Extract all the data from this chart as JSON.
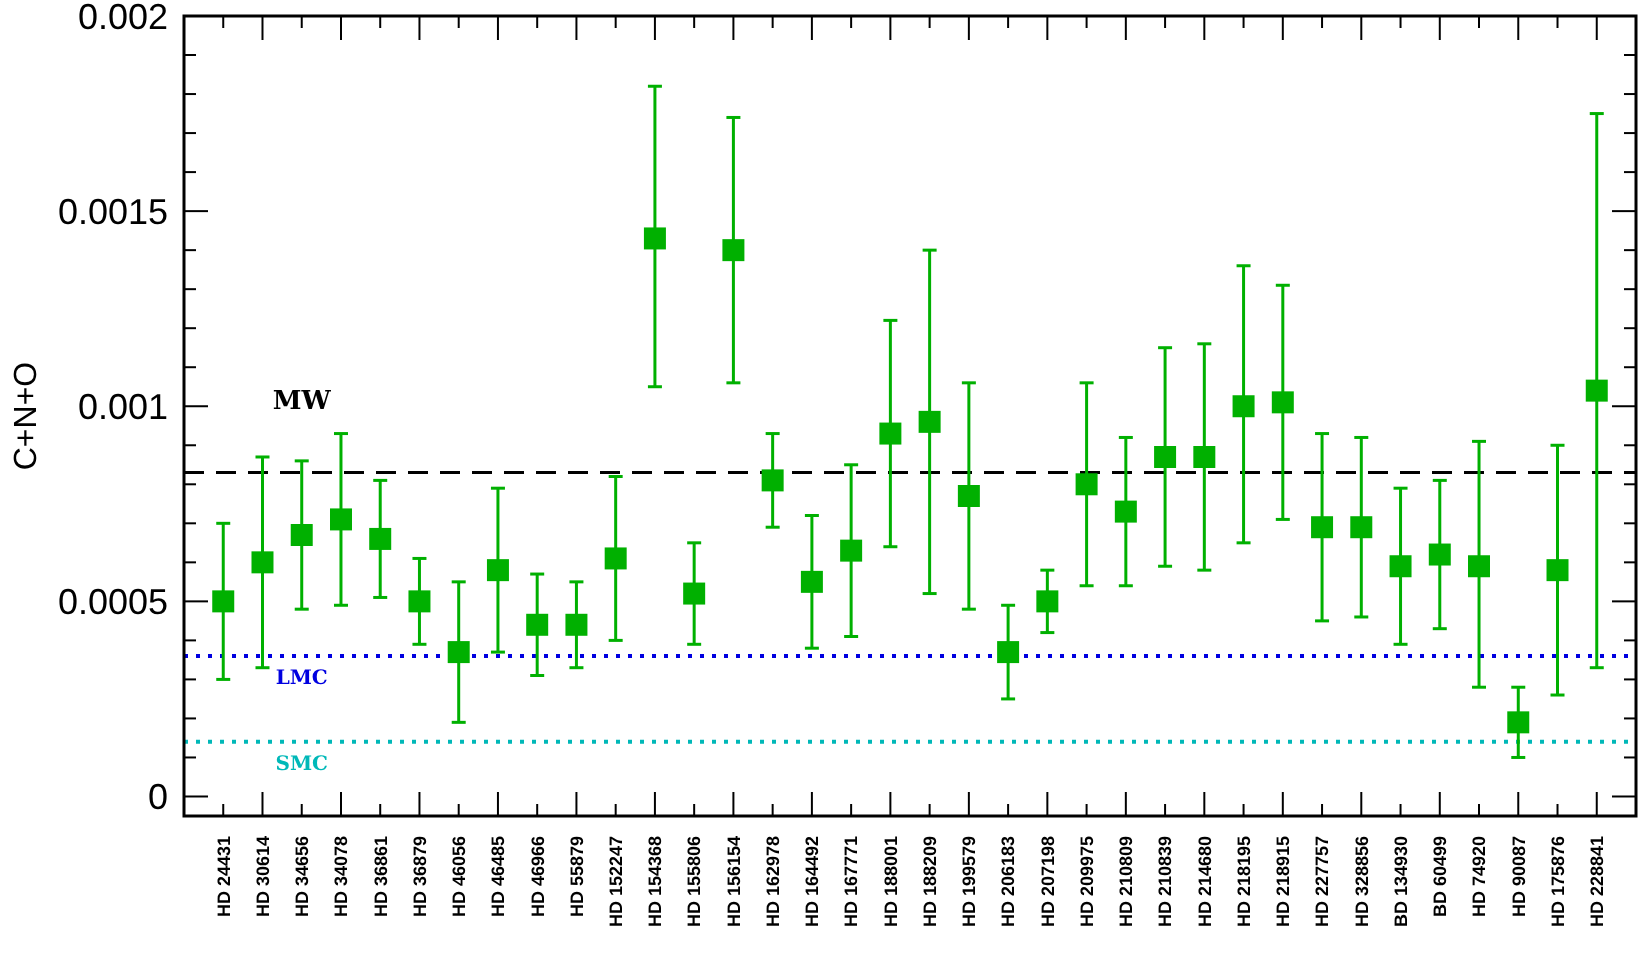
{
  "chart_data": {
    "type": "scatter",
    "ylabel": "C+N+O",
    "categories": [
      "HD 24431",
      "HD 30614",
      "HD 34656",
      "HD 34078",
      "HD 36861",
      "HD 36879",
      "HD 46056",
      "HD 46485",
      "HD 46966",
      "HD 55879",
      "HD 152247",
      "HD 154368",
      "HD 155806",
      "HD 156154",
      "HD 162978",
      "HD 164492",
      "HD 167771",
      "HD 188001",
      "HD 188209",
      "HD 199579",
      "HD 206183",
      "HD 207198",
      "HD 209975",
      "HD 210809",
      "HD 210839",
      "HD 214680",
      "HD 218195",
      "HD 218915",
      "HD 227757",
      "HD 328856",
      "BD 134930",
      "BD 60499",
      "HD 74920",
      "HD 90087",
      "HD 175876",
      "HD 228841"
    ],
    "series": [
      {
        "color": "#00b000",
        "values": [
          0.0005,
          0.0006,
          0.00067,
          0.00071,
          0.00066,
          0.0005,
          0.00037,
          0.00058,
          0.00044,
          0.00044,
          0.00061,
          0.00143,
          0.00052,
          0.0014,
          0.00081,
          0.00055,
          0.00063,
          0.00093,
          0.00096,
          0.00077,
          0.00037,
          0.0005,
          0.0008,
          0.00073,
          0.00087,
          0.00087,
          0.001,
          0.00101,
          0.00069,
          0.00069,
          0.00059,
          0.00062,
          0.00059,
          0.00019,
          0.00058,
          0.00104
        ],
        "errors": [
          [
            0.0003,
            0.0007
          ],
          [
            0.00033,
            0.00087
          ],
          [
            0.00048,
            0.00086
          ],
          [
            0.00049,
            0.00093
          ],
          [
            0.00051,
            0.00081
          ],
          [
            0.00039,
            0.00061
          ],
          [
            0.00019,
            0.00055
          ],
          [
            0.00037,
            0.00079
          ],
          [
            0.00031,
            0.00057
          ],
          [
            0.00033,
            0.00055
          ],
          [
            0.0004,
            0.00082
          ],
          [
            0.00105,
            0.00182
          ],
          [
            0.00039,
            0.00065
          ],
          [
            0.00106,
            0.00174
          ],
          [
            0.00069,
            0.00093
          ],
          [
            0.00038,
            0.00072
          ],
          [
            0.00041,
            0.00085
          ],
          [
            0.00064,
            0.00122
          ],
          [
            0.00052,
            0.0014
          ],
          [
            0.00048,
            0.00106
          ],
          [
            0.00025,
            0.00049
          ],
          [
            0.00042,
            0.00058
          ],
          [
            0.00054,
            0.00106
          ],
          [
            0.00054,
            0.00092
          ],
          [
            0.00059,
            0.00115
          ],
          [
            0.00058,
            0.00116
          ],
          [
            0.00065,
            0.00136
          ],
          [
            0.00071,
            0.00131
          ],
          [
            0.00045,
            0.00093
          ],
          [
            0.00046,
            0.00092
          ],
          [
            0.00039,
            0.00079
          ],
          [
            0.00043,
            0.00081
          ],
          [
            0.00028,
            0.00091
          ],
          [
            0.0001,
            0.00028
          ],
          [
            0.00026,
            0.0009
          ],
          [
            0.00033,
            0.00175
          ]
        ]
      }
    ],
    "marker": "square",
    "grid": false,
    "ylim": [
      -5e-05,
      0.002
    ],
    "yticks": [
      0,
      {
        "value": 0.0001,
        "label": null
      },
      {
        "value": 0.0002,
        "label": null
      },
      {
        "value": 0.0003,
        "label": null
      },
      {
        "value": 0.0004,
        "label": null
      },
      0.0005,
      {
        "value": 0.0006,
        "label": null
      },
      {
        "value": 0.0007,
        "label": null
      },
      {
        "value": 0.0008,
        "label": null
      },
      {
        "value": 0.0009,
        "label": null
      },
      0.001,
      {
        "value": 0.0011,
        "label": null
      },
      {
        "value": 0.0012,
        "label": null
      },
      {
        "value": 0.0013,
        "label": null
      },
      {
        "value": 0.0014,
        "label": null
      },
      0.0015,
      {
        "value": 0.0016,
        "label": null
      },
      {
        "value": 0.0017,
        "label": null
      },
      {
        "value": 0.0018,
        "label": null
      },
      {
        "value": 0.0019,
        "label": null
      },
      0.002
    ],
    "ref_lines": [
      {
        "axis": "y",
        "value": 0.00083,
        "label": "MW",
        "color": "#000000",
        "line_style": "dashed"
      },
      {
        "axis": "y",
        "value": 0.00036,
        "label": "LMC",
        "color": "#0000e0",
        "line_style": "dotted"
      },
      {
        "axis": "y",
        "value": 0.00014,
        "label": "SMC",
        "color": "#00b8b8",
        "line_style": "dotted"
      }
    ]
  }
}
